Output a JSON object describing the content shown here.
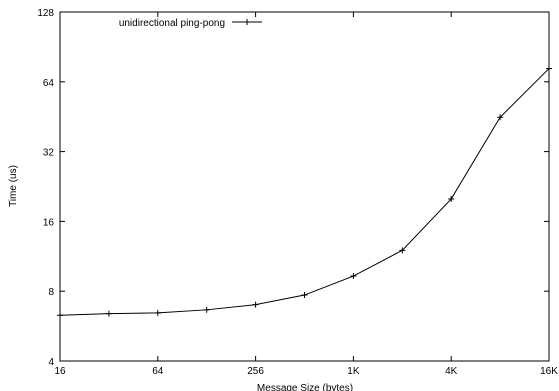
{
  "chart_data": {
    "type": "line",
    "title": "",
    "xlabel": "Message Size (bytes)",
    "ylabel": "Time (us)",
    "x_scale": "log2",
    "y_scale": "log2",
    "xlim": [
      16,
      16384
    ],
    "ylim": [
      4,
      128
    ],
    "x_ticks": [
      {
        "value": 16,
        "label": "16"
      },
      {
        "value": 64,
        "label": "64"
      },
      {
        "value": 256,
        "label": "256"
      },
      {
        "value": 1024,
        "label": "1K"
      },
      {
        "value": 4096,
        "label": "4K"
      },
      {
        "value": 16384,
        "label": "16K"
      }
    ],
    "y_ticks": [
      {
        "value": 4,
        "label": "4"
      },
      {
        "value": 8,
        "label": "8"
      },
      {
        "value": 16,
        "label": "16"
      },
      {
        "value": 32,
        "label": "32"
      },
      {
        "value": 64,
        "label": "64"
      },
      {
        "value": 128,
        "label": "128"
      }
    ],
    "grid": false,
    "legend_position": "top-left",
    "series": [
      {
        "name": "unidirectional ping-pong",
        "color": "#000000",
        "marker": "plus",
        "x": [
          16,
          32,
          64,
          128,
          256,
          512,
          1024,
          2048,
          4096,
          8192,
          16384
        ],
        "y": [
          6.3,
          6.4,
          6.45,
          6.65,
          7.0,
          7.7,
          9.3,
          12.0,
          20.0,
          45.0,
          73.0
        ]
      }
    ]
  }
}
